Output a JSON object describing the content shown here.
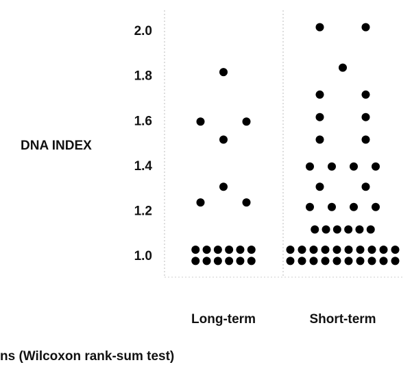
{
  "chart_data": {
    "type": "dot",
    "ylabel": "DNA INDEX",
    "categories": [
      "Long-term",
      "Short-term"
    ],
    "values": [
      [
        1.82,
        1.6,
        1.6,
        1.52,
        1.31,
        1.24,
        1.24,
        1.03,
        1.03,
        1.03,
        1.03,
        1.03,
        1.03,
        0.98,
        0.98,
        0.98,
        0.98,
        0.98,
        0.98
      ],
      [
        2.02,
        2.02,
        1.84,
        1.72,
        1.72,
        1.62,
        1.62,
        1.52,
        1.52,
        1.4,
        1.4,
        1.4,
        1.4,
        1.31,
        1.31,
        1.22,
        1.22,
        1.22,
        1.22,
        1.12,
        1.12,
        1.12,
        1.12,
        1.12,
        1.12,
        1.03,
        1.03,
        1.03,
        1.03,
        1.03,
        1.03,
        1.03,
        1.03,
        1.03,
        1.03,
        0.98,
        0.98,
        0.98,
        0.98,
        0.98,
        0.98,
        0.98,
        0.98,
        0.98,
        0.98
      ]
    ],
    "color": "#000000",
    "ylim": [
      0.92,
      2.08
    ],
    "yticks": [
      {
        "value": 1,
        "label": "1.0"
      },
      1.2,
      1.4,
      1.6,
      1.8,
      {
        "value": 2,
        "label": "2.0"
      }
    ],
    "note": "ns (Wilcoxon rank-sum test)"
  }
}
